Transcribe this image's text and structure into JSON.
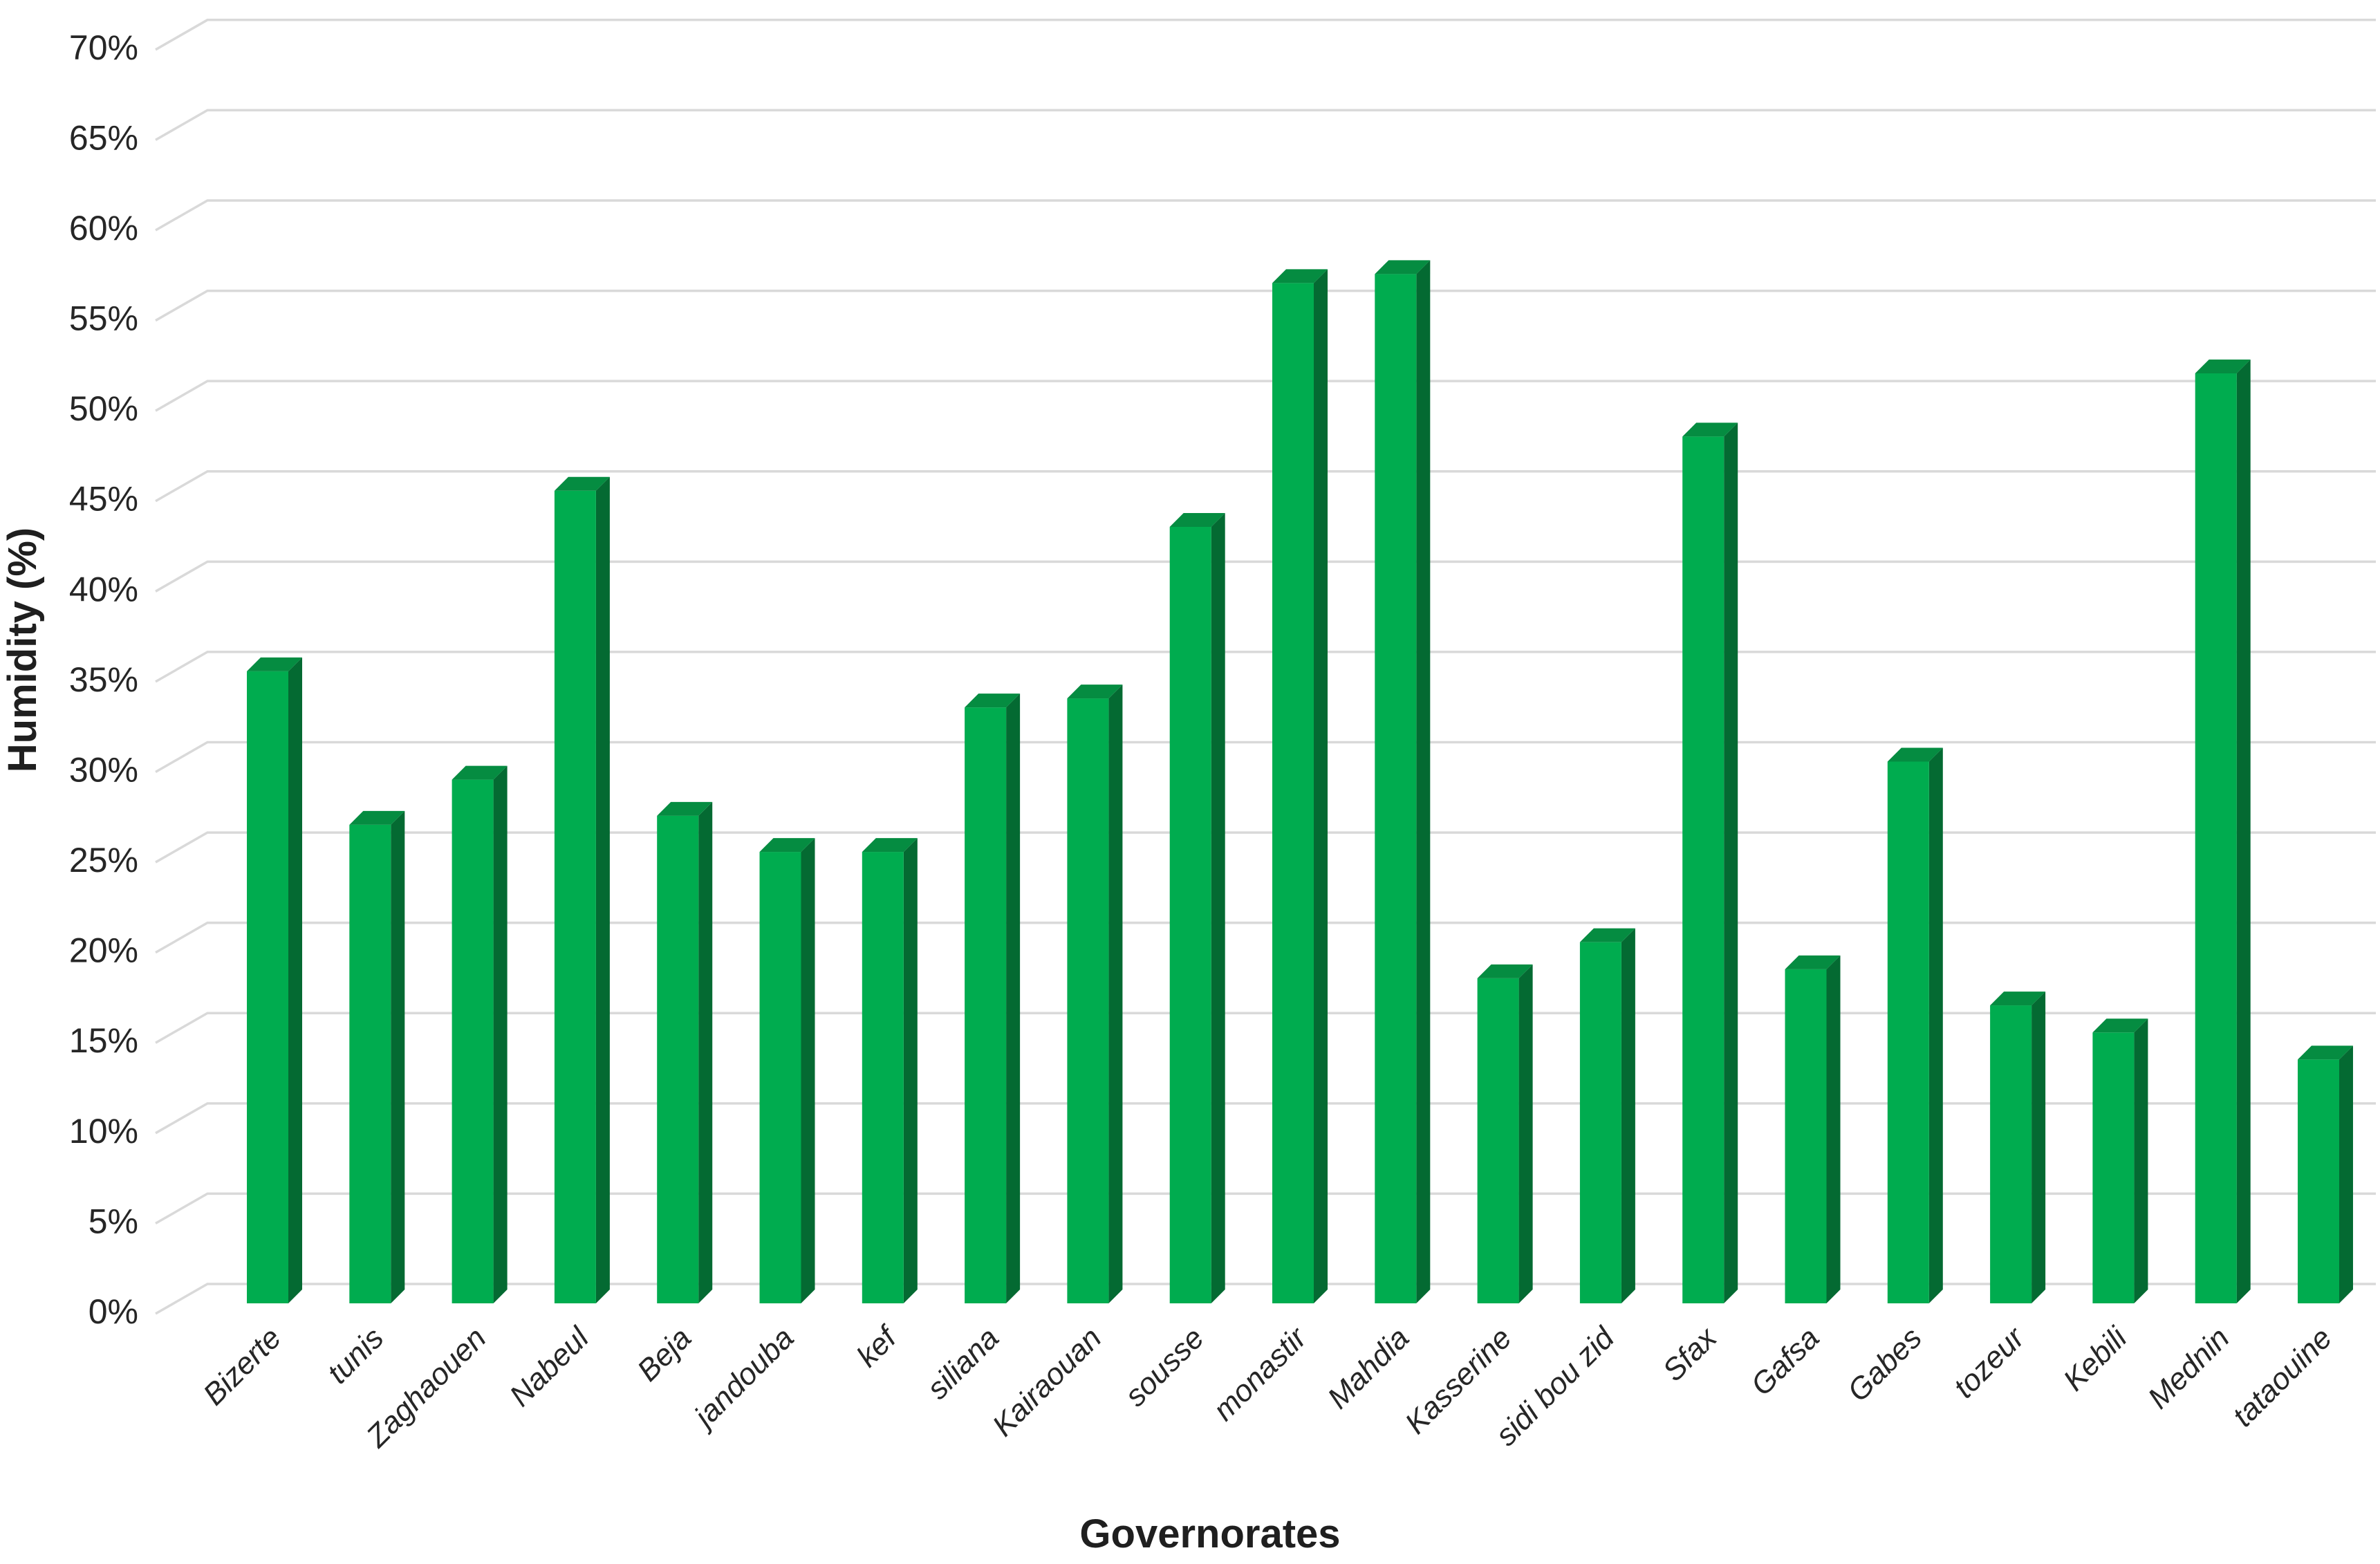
{
  "chart_data": {
    "type": "bar",
    "style": "3d-column",
    "title": "",
    "xlabel": "Governorates",
    "ylabel": "Humidity (%)",
    "legend_position": "none",
    "grid": true,
    "ylim": [
      0,
      70
    ],
    "ytick_step": 5,
    "ytick_labels": [
      "0%",
      "5%",
      "10%",
      "15%",
      "20%",
      "25%",
      "30%",
      "35%",
      "40%",
      "45%",
      "50%",
      "55%",
      "60%",
      "65%",
      "70%"
    ],
    "categories": [
      "Bizerte",
      "tunis",
      "Zaghaouen",
      "Nabeul",
      "Beja",
      "jandouba",
      "kef",
      "siliana",
      "Kairaouan",
      "sousse",
      "monastir",
      "Mahdia",
      "Kasserine",
      "sidi bou zid",
      "Sfax",
      "Gafsa",
      "Gabes",
      "tozeur",
      "Kebili",
      "Mednin",
      "tataouine"
    ],
    "values": [
      35,
      26.5,
      29,
      45,
      27,
      25,
      25,
      33,
      33.5,
      43,
      56.5,
      57,
      18,
      20,
      48,
      18.5,
      30,
      16.5,
      15,
      51.5,
      13.5
    ],
    "unit": "%",
    "colors": {
      "bar_front": "#00AC4F",
      "bar_side": "#046A32",
      "bar_top": "#058C41",
      "gridline": "#D9D9D9",
      "text": "#262626"
    }
  }
}
